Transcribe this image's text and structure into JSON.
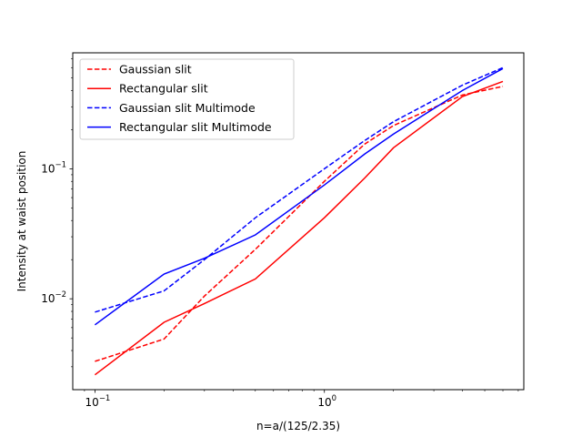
{
  "chart_data": {
    "type": "line",
    "xlabel": "n=a/(125/2.35)",
    "ylabel": "Intensity at waist position",
    "xscale": "log",
    "yscale": "log",
    "xlim": [
      0.08,
      7.4
    ],
    "ylim": [
      0.002,
      0.78
    ],
    "xticks": [
      {
        "value": 0.1,
        "base": "10",
        "exp": "−1"
      },
      {
        "value": 1,
        "base": "10",
        "exp": "0"
      }
    ],
    "yticks": [
      {
        "value": 0.01,
        "base": "10",
        "exp": "−2"
      },
      {
        "value": 0.1,
        "base": "10",
        "exp": "−1"
      }
    ],
    "grid": false,
    "legend_position": "upper-left",
    "series": [
      {
        "name": "Gaussian slit",
        "color": "#ff0000",
        "dash": "dashed",
        "x": [
          0.1,
          0.2,
          0.3,
          0.5,
          1.0,
          1.5,
          2.0,
          4.0,
          6.0
        ],
        "y": [
          0.0033,
          0.0049,
          0.0105,
          0.024,
          0.08,
          0.155,
          0.215,
          0.37,
          0.43
        ]
      },
      {
        "name": "Rectangular slit",
        "color": "#ff0000",
        "dash": "solid",
        "x": [
          0.1,
          0.2,
          0.3,
          0.5,
          1.0,
          1.5,
          2.0,
          4.0,
          6.0
        ],
        "y": [
          0.0026,
          0.0066,
          0.0092,
          0.0142,
          0.042,
          0.085,
          0.145,
          0.36,
          0.47
        ]
      },
      {
        "name": "Gaussian slit Multimode",
        "color": "#0000ff",
        "dash": "dashed",
        "x": [
          0.1,
          0.2,
          0.3,
          0.5,
          1.0,
          1.5,
          2.0,
          4.0,
          6.0
        ],
        "y": [
          0.0079,
          0.0115,
          0.02,
          0.042,
          0.1,
          0.165,
          0.23,
          0.44,
          0.6
        ]
      },
      {
        "name": "Rectangular slit Multimode",
        "color": "#0000ff",
        "dash": "solid",
        "x": [
          0.1,
          0.2,
          0.3,
          0.5,
          1.0,
          1.5,
          2.0,
          4.0,
          6.0
        ],
        "y": [
          0.0063,
          0.0155,
          0.0205,
          0.031,
          0.075,
          0.13,
          0.185,
          0.4,
          0.59
        ]
      }
    ]
  }
}
